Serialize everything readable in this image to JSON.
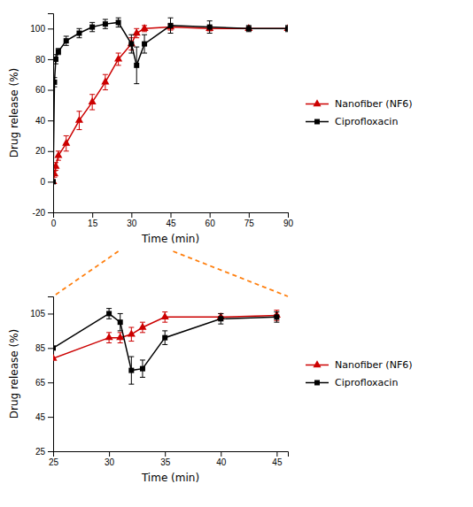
{
  "chart_data": [
    {
      "type": "line",
      "xlabel": "Time (min)",
      "ylabel": "Drug release (%)",
      "x": [
        0,
        0.5,
        1,
        2,
        5,
        10,
        15,
        20,
        25,
        30,
        32,
        35,
        45,
        60,
        75,
        90
      ],
      "series": [
        {
          "name": "Nanofiber (NF6)",
          "color": "#cc0000",
          "marker": "triangle",
          "values": [
            0,
            5,
            10,
            17,
            25,
            40,
            52,
            65,
            80,
            90,
            97,
            100,
            101,
            100,
            100,
            100
          ],
          "errors": [
            0.5,
            2,
            2.5,
            3,
            5,
            6,
            5,
            5,
            4,
            4,
            3,
            2,
            2,
            1.5,
            1,
            1
          ]
        },
        {
          "name": "Ciprofloxacin",
          "color": "#000000",
          "marker": "square",
          "values": [
            0,
            65,
            80,
            85,
            92,
            97,
            101,
            103,
            104,
            90,
            76,
            90,
            102,
            101,
            100,
            100
          ],
          "errors": [
            0.5,
            3,
            3,
            2,
            3,
            3,
            3,
            3,
            3,
            6,
            12,
            6,
            5,
            4,
            2,
            2
          ]
        }
      ],
      "xlim": [
        0,
        90
      ],
      "ylim": [
        -20,
        110
      ],
      "xticks": [
        0,
        15,
        30,
        45,
        60,
        75,
        90
      ],
      "yticks": [
        -20,
        0,
        20,
        40,
        60,
        80,
        100
      ],
      "grid": false,
      "legend": "right"
    },
    {
      "type": "line",
      "xlabel": "Time (min)",
      "ylabel": "Drug release (%)",
      "x": [
        25,
        30,
        31,
        32,
        33,
        35,
        40,
        45
      ],
      "series": [
        {
          "name": "Nanofiber (NF6)",
          "color": "#cc0000",
          "marker": "triangle",
          "values": [
            79,
            91,
            91,
            93,
            97,
            103,
            103,
            104
          ],
          "errors": [
            0,
            3,
            3,
            4,
            3,
            3,
            2,
            3
          ]
        },
        {
          "name": "Ciprofloxacin",
          "color": "#000000",
          "marker": "square",
          "values": [
            85,
            105,
            100,
            72,
            73,
            91,
            102,
            103
          ],
          "errors": [
            0,
            3,
            5,
            8,
            5,
            4,
            3,
            3
          ]
        }
      ],
      "xlim": [
        25,
        46
      ],
      "ylim": [
        25,
        115
      ],
      "xticks": [
        25,
        30,
        35,
        40,
        45
      ],
      "yticks": [
        25,
        45,
        65,
        85,
        105
      ],
      "grid": false,
      "legend": "right"
    }
  ]
}
